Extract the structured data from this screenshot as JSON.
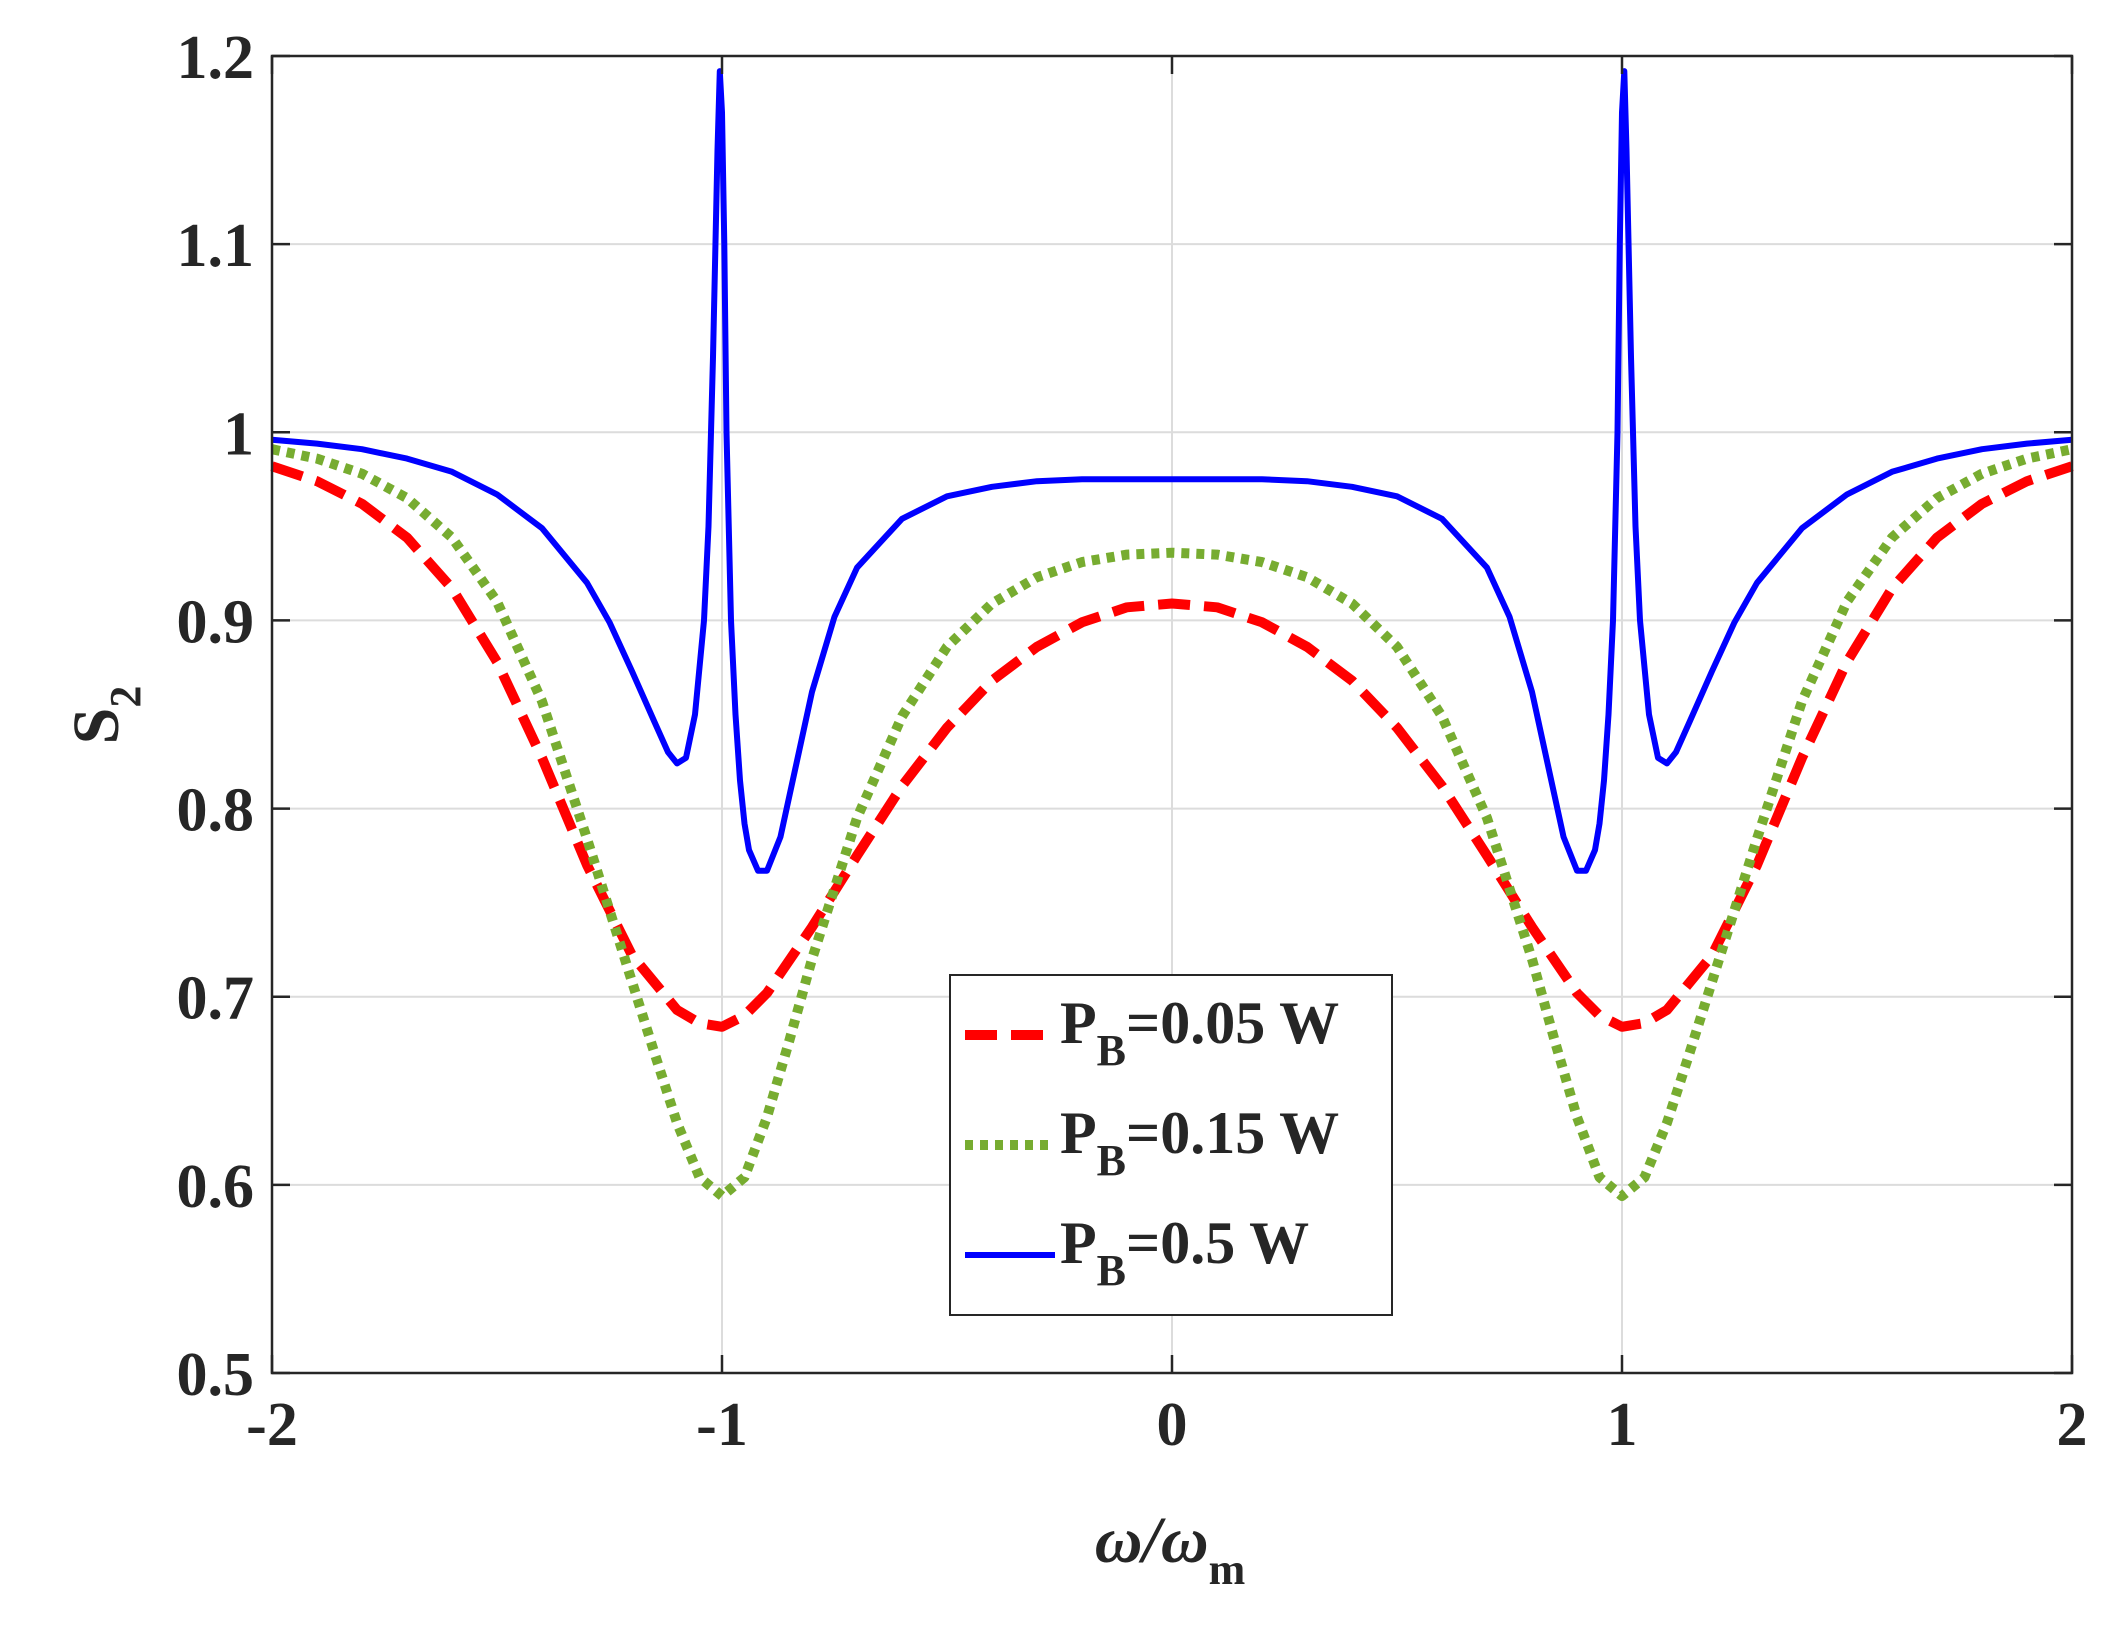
{
  "chart_data": {
    "type": "line",
    "title": "",
    "xlabel": {
      "main": "ω/ω",
      "sub": "m"
    },
    "ylabel": {
      "main": "S",
      "sub": "2"
    },
    "xlim": [
      -2,
      2
    ],
    "ylim": [
      0.5,
      1.2
    ],
    "xticks": [
      -2,
      -1,
      0,
      1,
      2
    ],
    "xtick_labels": [
      "-2",
      "-1",
      "0",
      "1",
      "2"
    ],
    "yticks": [
      0.5,
      0.6,
      0.7,
      0.8,
      0.9,
      1.0,
      1.1,
      1.2
    ],
    "ytick_labels": [
      "0.5",
      "0.6",
      "0.7",
      "0.8",
      "0.9",
      "1",
      "1.1",
      "1.2"
    ],
    "grid": true,
    "legend_position": "bottom-center",
    "series": [
      {
        "name": "P_B=0.05 W",
        "legend": {
          "p": "P",
          "sub": "B",
          "rest": "=0.05 W"
        },
        "color": "#ff0000",
        "style": "dashed",
        "x": [
          -2.0,
          -1.9,
          -1.8,
          -1.7,
          -1.6,
          -1.5,
          -1.4,
          -1.3,
          -1.2,
          -1.1,
          -1.05,
          -1.0,
          -0.95,
          -0.9,
          -0.8,
          -0.7,
          -0.6,
          -0.5,
          -0.4,
          -0.3,
          -0.2,
          -0.1,
          0.0,
          0.1,
          0.2,
          0.3,
          0.4,
          0.5,
          0.6,
          0.7,
          0.8,
          0.9,
          0.95,
          1.0,
          1.05,
          1.1,
          1.2,
          1.3,
          1.4,
          1.5,
          1.6,
          1.7,
          1.8,
          1.9,
          2.0
        ],
        "y": [
          0.982,
          0.974,
          0.962,
          0.944,
          0.917,
          0.878,
          0.827,
          0.77,
          0.722,
          0.693,
          0.686,
          0.684,
          0.69,
          0.702,
          0.737,
          0.775,
          0.812,
          0.843,
          0.868,
          0.886,
          0.899,
          0.907,
          0.909,
          0.907,
          0.899,
          0.886,
          0.868,
          0.843,
          0.812,
          0.775,
          0.737,
          0.702,
          0.69,
          0.684,
          0.686,
          0.693,
          0.722,
          0.77,
          0.827,
          0.878,
          0.917,
          0.944,
          0.962,
          0.974,
          0.982
        ]
      },
      {
        "name": "P_B=0.15 W",
        "legend": {
          "p": "P",
          "sub": "B",
          "rest": "=0.15 W"
        },
        "color": "#77ac30",
        "style": "dotted",
        "x": [
          -2.0,
          -1.9,
          -1.8,
          -1.7,
          -1.6,
          -1.5,
          -1.4,
          -1.3,
          -1.2,
          -1.15,
          -1.1,
          -1.05,
          -1.0,
          -0.95,
          -0.9,
          -0.85,
          -0.8,
          -0.7,
          -0.6,
          -0.5,
          -0.4,
          -0.3,
          -0.2,
          -0.1,
          0.0,
          0.1,
          0.2,
          0.3,
          0.4,
          0.5,
          0.6,
          0.7,
          0.8,
          0.85,
          0.9,
          0.95,
          1.0,
          1.05,
          1.1,
          1.15,
          1.2,
          1.3,
          1.4,
          1.5,
          1.6,
          1.7,
          1.8,
          1.9,
          2.0
        ],
        "y": [
          0.991,
          0.986,
          0.978,
          0.965,
          0.944,
          0.91,
          0.857,
          0.784,
          0.708,
          0.67,
          0.633,
          0.604,
          0.594,
          0.604,
          0.636,
          0.677,
          0.72,
          0.795,
          0.849,
          0.886,
          0.909,
          0.923,
          0.931,
          0.935,
          0.936,
          0.935,
          0.931,
          0.923,
          0.909,
          0.886,
          0.849,
          0.795,
          0.72,
          0.677,
          0.636,
          0.604,
          0.594,
          0.604,
          0.633,
          0.67,
          0.708,
          0.784,
          0.857,
          0.91,
          0.944,
          0.965,
          0.978,
          0.986,
          0.991
        ]
      },
      {
        "name": "P_B=0.5 W",
        "legend": {
          "p": "P",
          "sub": "B",
          "rest": "=0.5 W"
        },
        "color": "#0000ff",
        "style": "solid",
        "x": [
          -2.0,
          -1.9,
          -1.8,
          -1.7,
          -1.6,
          -1.5,
          -1.4,
          -1.3,
          -1.25,
          -1.2,
          -1.15,
          -1.12,
          -1.1,
          -1.08,
          -1.06,
          -1.04,
          -1.03,
          -1.02,
          -1.01,
          -1.005,
          -1.0,
          -0.995,
          -0.99,
          -0.98,
          -0.97,
          -0.96,
          -0.95,
          -0.94,
          -0.92,
          -0.9,
          -0.87,
          -0.85,
          -0.8,
          -0.75,
          -0.7,
          -0.6,
          -0.5,
          -0.4,
          -0.3,
          -0.2,
          -0.1,
          0.0,
          0.1,
          0.2,
          0.3,
          0.4,
          0.5,
          0.6,
          0.7,
          0.75,
          0.8,
          0.85,
          0.87,
          0.9,
          0.92,
          0.94,
          0.95,
          0.96,
          0.97,
          0.98,
          0.99,
          0.995,
          1.0,
          1.005,
          1.01,
          1.02,
          1.03,
          1.04,
          1.06,
          1.08,
          1.1,
          1.12,
          1.15,
          1.2,
          1.25,
          1.3,
          1.4,
          1.5,
          1.6,
          1.7,
          1.8,
          1.9,
          2.0
        ],
        "y": [
          0.996,
          0.994,
          0.991,
          0.986,
          0.979,
          0.967,
          0.949,
          0.92,
          0.899,
          0.873,
          0.846,
          0.83,
          0.824,
          0.827,
          0.85,
          0.9,
          0.95,
          1.04,
          1.15,
          1.192,
          1.17,
          1.1,
          1.0,
          0.9,
          0.85,
          0.815,
          0.792,
          0.778,
          0.767,
          0.767,
          0.785,
          0.807,
          0.862,
          0.902,
          0.928,
          0.954,
          0.966,
          0.971,
          0.974,
          0.975,
          0.975,
          0.975,
          0.975,
          0.975,
          0.974,
          0.971,
          0.966,
          0.954,
          0.928,
          0.902,
          0.862,
          0.807,
          0.785,
          0.767,
          0.767,
          0.778,
          0.792,
          0.815,
          0.85,
          0.9,
          1.0,
          1.1,
          1.17,
          1.192,
          1.15,
          1.04,
          0.95,
          0.9,
          0.85,
          0.827,
          0.824,
          0.83,
          0.846,
          0.873,
          0.899,
          0.92,
          0.949,
          0.967,
          0.979,
          0.986,
          0.991,
          0.994,
          0.996
        ]
      }
    ]
  }
}
